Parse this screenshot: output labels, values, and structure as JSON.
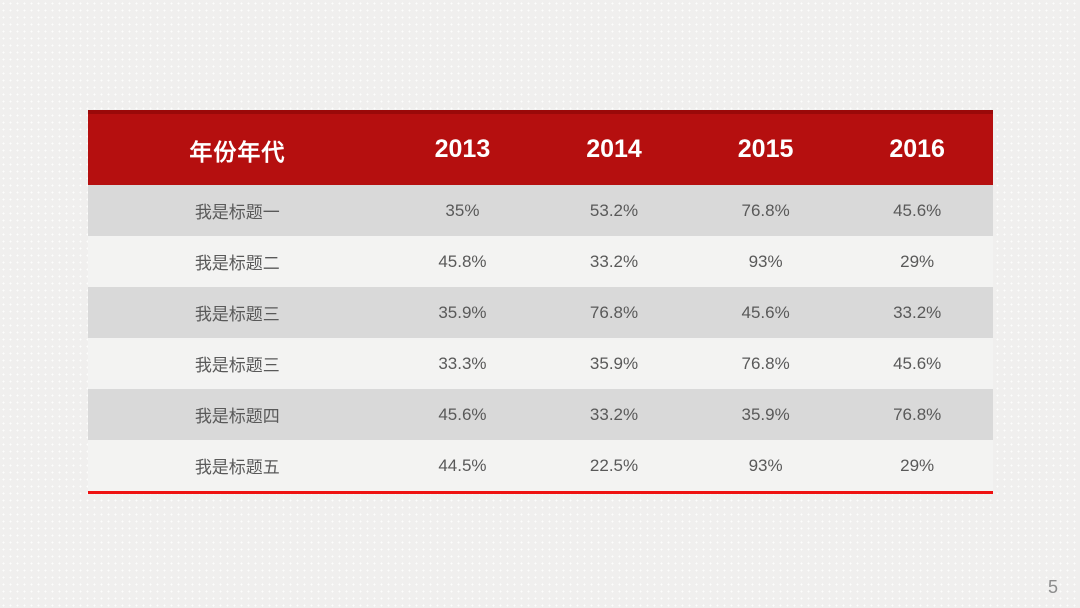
{
  "slide": {
    "page_number": "5"
  },
  "colors": {
    "header_bg": "#b50f0f",
    "header_top_strip": "#9a0909",
    "header_text": "#ffffff",
    "row_alt_bg": "#d9d9d9",
    "row_bg": "#f3f3f2",
    "cell_text": "#595959",
    "accent_line": "#ee1111",
    "slide_bg": "#f0efee",
    "page_number_text": "#8c8c8c"
  },
  "table": {
    "header": [
      "年份年代",
      "2013",
      "2014",
      "2015",
      "2016"
    ],
    "rows": [
      {
        "label": "我是标题一",
        "values": [
          "35%",
          "53.2%",
          "76.8%",
          "45.6%"
        ]
      },
      {
        "label": "我是标题二",
        "values": [
          "45.8%",
          "33.2%",
          "93%",
          "29%"
        ]
      },
      {
        "label": "我是标题三",
        "values": [
          "35.9%",
          "76.8%",
          "45.6%",
          "33.2%"
        ]
      },
      {
        "label": "我是标题三",
        "values": [
          "33.3%",
          "35.9%",
          "76.8%",
          "45.6%"
        ]
      },
      {
        "label": "我是标题四",
        "values": [
          "45.6%",
          "33.2%",
          "35.9%",
          "76.8%"
        ]
      },
      {
        "label": "我是标题五",
        "values": [
          "44.5%",
          "22.5%",
          "93%",
          "29%"
        ]
      }
    ]
  },
  "chart_data": {
    "type": "table",
    "title": "",
    "columns": [
      "年份年代",
      "2013",
      "2014",
      "2015",
      "2016"
    ],
    "rows": [
      [
        "我是标题一",
        "35%",
        "53.2%",
        "76.8%",
        "45.6%"
      ],
      [
        "我是标题二",
        "45.8%",
        "33.2%",
        "93%",
        "29%"
      ],
      [
        "我是标题三",
        "35.9%",
        "76.8%",
        "45.6%",
        "33.2%"
      ],
      [
        "我是标题三",
        "33.3%",
        "35.9%",
        "76.8%",
        "45.6%"
      ],
      [
        "我是标题四",
        "45.6%",
        "33.2%",
        "35.9%",
        "76.8%"
      ],
      [
        "我是标题五",
        "44.5%",
        "22.5%",
        "93%",
        "29%"
      ]
    ]
  }
}
